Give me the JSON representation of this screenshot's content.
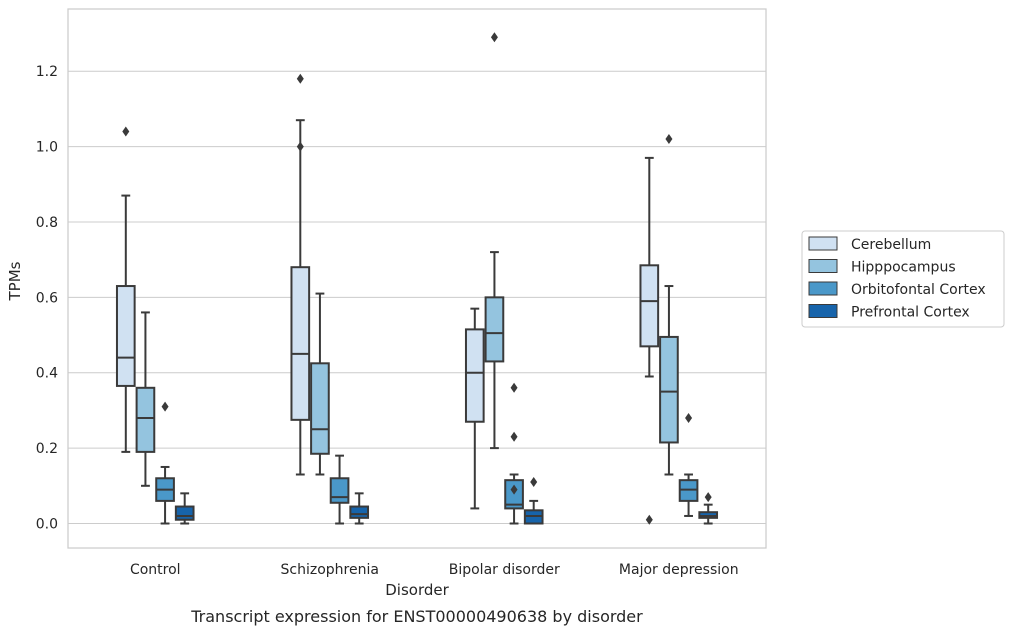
{
  "chart_data": {
    "type": "box",
    "caption": "Transcript expression for ENST00000490638 by disorder",
    "xlabel": "Disorder",
    "ylabel": "TPMs",
    "ylim": [
      -0.065,
      1.365
    ],
    "yticks": [
      0.0,
      0.2,
      0.4,
      0.6,
      0.8,
      1.0,
      1.2
    ],
    "ytick_labels": [
      "0.0",
      "0.2",
      "0.4",
      "0.6",
      "0.8",
      "1.0",
      "1.2"
    ],
    "grid": true,
    "legend_position": "right",
    "categories": [
      "Control",
      "Schizophrenia",
      "Bipolar disorder",
      "Major depression"
    ],
    "series": [
      {
        "name": "Cerebellum",
        "color": "#d0e1f2",
        "boxes": [
          {
            "whislo": 0.19,
            "q1": 0.365,
            "med": 0.44,
            "q3": 0.63,
            "whishi": 0.87,
            "fliers": [
              1.04
            ]
          },
          {
            "whislo": 0.13,
            "q1": 0.275,
            "med": 0.45,
            "q3": 0.68,
            "whishi": 1.07,
            "fliers": [
              1.18,
              1.0
            ]
          },
          {
            "whislo": 0.04,
            "q1": 0.27,
            "med": 0.4,
            "q3": 0.515,
            "whishi": 0.57,
            "fliers": []
          },
          {
            "whislo": 0.39,
            "q1": 0.47,
            "med": 0.59,
            "q3": 0.685,
            "whishi": 0.97,
            "fliers": [
              0.01
            ]
          }
        ]
      },
      {
        "name": "Hipppocampus",
        "color": "#94c4df",
        "boxes": [
          {
            "whislo": 0.1,
            "q1": 0.19,
            "med": 0.28,
            "q3": 0.36,
            "whishi": 0.56,
            "fliers": []
          },
          {
            "whislo": 0.13,
            "q1": 0.185,
            "med": 0.25,
            "q3": 0.425,
            "whishi": 0.61,
            "fliers": []
          },
          {
            "whislo": 0.2,
            "q1": 0.43,
            "med": 0.505,
            "q3": 0.6,
            "whishi": 0.72,
            "fliers": [
              1.29
            ]
          },
          {
            "whislo": 0.13,
            "q1": 0.215,
            "med": 0.35,
            "q3": 0.495,
            "whishi": 0.63,
            "fliers": [
              1.02
            ]
          }
        ]
      },
      {
        "name": "Orbitofontal Cortex",
        "color": "#4a98c9",
        "boxes": [
          {
            "whislo": 0.0,
            "q1": 0.06,
            "med": 0.09,
            "q3": 0.12,
            "whishi": 0.15,
            "fliers": [
              0.31
            ]
          },
          {
            "whislo": 0.0,
            "q1": 0.055,
            "med": 0.07,
            "q3": 0.12,
            "whishi": 0.18,
            "fliers": []
          },
          {
            "whislo": 0.0,
            "q1": 0.04,
            "med": 0.05,
            "q3": 0.115,
            "whishi": 0.13,
            "fliers": [
              0.36,
              0.23,
              0.09
            ]
          },
          {
            "whislo": 0.02,
            "q1": 0.06,
            "med": 0.09,
            "q3": 0.115,
            "whishi": 0.13,
            "fliers": [
              0.28
            ]
          }
        ]
      },
      {
        "name": "Prefrontal Cortex",
        "color": "#1764ab",
        "boxes": [
          {
            "whislo": 0.0,
            "q1": 0.01,
            "med": 0.02,
            "q3": 0.045,
            "whishi": 0.08,
            "fliers": []
          },
          {
            "whislo": 0.0,
            "q1": 0.015,
            "med": 0.025,
            "q3": 0.045,
            "whishi": 0.08,
            "fliers": []
          },
          {
            "whislo": 0.0,
            "q1": 0.0,
            "med": 0.02,
            "q3": 0.035,
            "whishi": 0.06,
            "fliers": [
              0.11
            ]
          },
          {
            "whislo": 0.0,
            "q1": 0.015,
            "med": 0.02,
            "q3": 0.03,
            "whishi": 0.05,
            "fliers": [
              0.07
            ]
          }
        ]
      }
    ]
  }
}
